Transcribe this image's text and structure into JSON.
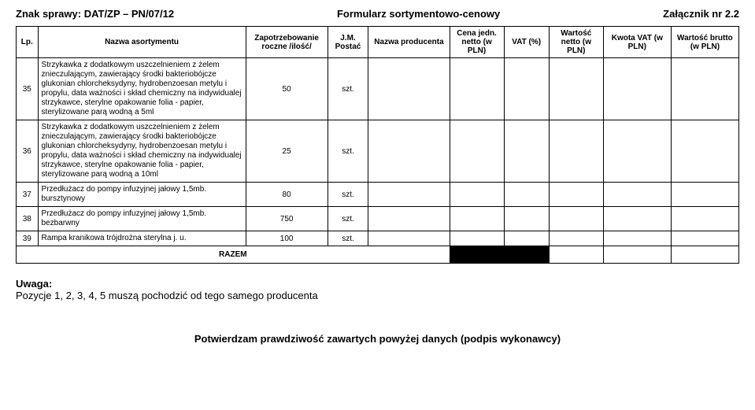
{
  "header": {
    "case_no_label": "Znak sprawy: DAT/ZP – PN/07/12",
    "form_title": "Formularz sortymentowo-cenowy",
    "attachment": "Załącznik nr 2.2"
  },
  "columns": {
    "lp": "Lp.",
    "name": "Nazwa asortymentu",
    "demand": "Zapotrzebowanie roczne /ilość/",
    "unit": "J.M. Postać",
    "producer": "Nazwa producenta",
    "unit_price": "Cena jedn. netto (w PLN)",
    "vat_pct": "VAT (%)",
    "net_value": "Wartość netto (w PLN)",
    "vat_amount": "Kwota VAT (w PLN)",
    "gross_value": "Wartość brutto (w PLN)"
  },
  "rows": [
    {
      "lp": "35",
      "name": "Strzykawka z dodatkowym uszczelnieniem z żelem znieczulającym, zawierający środki bakteriobójcze glukonian chlorcheksydyny, hydrobenzoesan metylu i propylu, data ważności i skład chemiczny na indywidualej strzykawce, sterylne opakowanie folia - papier, sterylizowane parą wodną a 5ml",
      "qty": "50",
      "unit": "szt."
    },
    {
      "lp": "36",
      "name": "Strzykawka z dodatkowym uszczelnieniem z żelem znieczulającym, zawierający środki bakteriobójcze glukonian chlorcheksydyny, hydrobenzoesan metylu i propylu, data ważności i skład chemiczny na indywidualej strzykawce, sterylne opakowanie folia - papier, sterylizowane parą wodną a 10ml",
      "qty": "25",
      "unit": "szt."
    },
    {
      "lp": "37",
      "name": "Przedłużacz do pompy infuzyjnej jałowy 1,5mb. bursztynowy",
      "qty": "80",
      "unit": "szt."
    },
    {
      "lp": "38",
      "name": "Przedłużacz do pompy infuzyjnej jałowy 1,5mb. bezbarwny",
      "qty": "750",
      "unit": "szt."
    },
    {
      "lp": "39",
      "name": "Rampa kranikowa trójdrożna sterylna j. u.",
      "qty": "100",
      "unit": "szt."
    }
  ],
  "razem": "RAZEM",
  "note": {
    "title": "Uwaga:",
    "text": "Pozycje 1, 2, 3, 4, 5 muszą pochodzić od tego samego producenta"
  },
  "footer": "Potwierdzam prawdziwość zawartych powyżej danych (podpis wykonawcy)"
}
